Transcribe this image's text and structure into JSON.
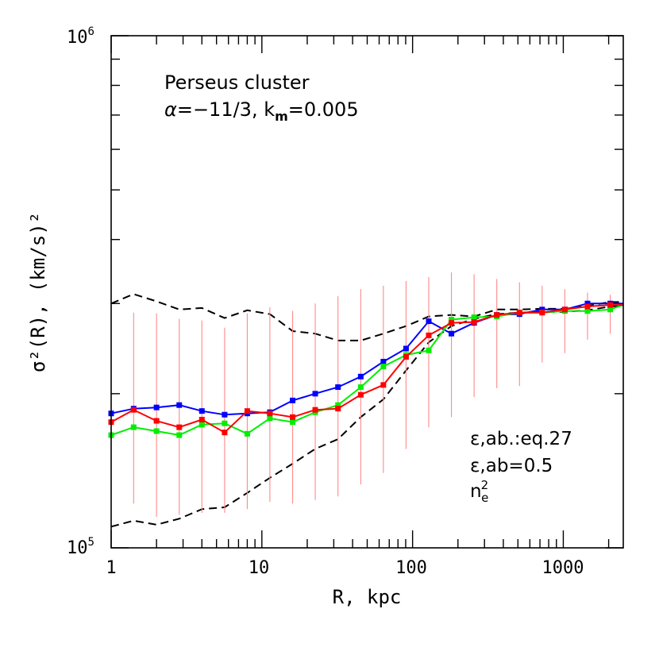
{
  "chart_data": {
    "type": "line",
    "title": "Perseus cluster",
    "subtitle": {
      "alpha_symbol": "α",
      "alpha_value": "=−11/3, k",
      "k_sub": "m",
      "k_value": "=0.005"
    },
    "xlabel": "R, kpc",
    "ylabel": "σ²(R), (km/s)²",
    "x_scale": "log",
    "y_scale": "log",
    "xlim": [
      1,
      2500
    ],
    "ylim": [
      100000,
      1000000
    ],
    "x_ticklabels": [
      "1",
      "10",
      "100",
      "1000"
    ],
    "y_ticklabels": {
      "low": {
        "base": "10",
        "exp": "5"
      },
      "high": {
        "base": "10",
        "exp": "6"
      }
    },
    "colors": {
      "red": "#ff0000",
      "blue": "#0000ff",
      "green": "#00ee00",
      "errorbar": "#ff8a8a",
      "envelope": "#000000"
    },
    "legend_position": "lower-right",
    "x": [
      1,
      1.41,
      2,
      2.83,
      4,
      5.66,
      8,
      11.3,
      16,
      22.6,
      32,
      45.3,
      64,
      90.5,
      128,
      181,
      256,
      362,
      512,
      724,
      1024,
      1448,
      2048,
      2500
    ],
    "series": [
      {
        "name": "ε,ab.:eq.27",
        "color": "red",
        "values": [
          176000,
          186000,
          177000,
          172000,
          178000,
          168000,
          185000,
          183000,
          180000,
          186000,
          187000,
          199000,
          208000,
          236000,
          260000,
          275000,
          276000,
          285000,
          288000,
          288000,
          292000,
          296000,
          298000,
          298000
        ]
      },
      {
        "name": "ε,ab=0.5",
        "color": "blue",
        "values": [
          183000,
          187000,
          188000,
          190000,
          185000,
          182000,
          183000,
          184000,
          194000,
          200000,
          206000,
          216000,
          231000,
          245000,
          277000,
          262000,
          275000,
          285000,
          286000,
          292000,
          292000,
          300000,
          300000,
          300000
        ]
      },
      {
        "name": "n_e²",
        "color": "green",
        "values": [
          166000,
          172000,
          169000,
          166000,
          174000,
          175000,
          167000,
          179000,
          176000,
          184000,
          190000,
          206000,
          226000,
          238000,
          243000,
          279000,
          282000,
          283000,
          288000,
          288000,
          290000,
          290000,
          292000,
          298000
        ]
      }
    ],
    "error_bars": [
      {
        "x": 1.41,
        "low": 122000,
        "high": 288000
      },
      {
        "x": 2,
        "low": 115000,
        "high": 287000
      },
      {
        "x": 2.83,
        "low": 116000,
        "high": 280000
      },
      {
        "x": 4,
        "low": 117000,
        "high": 278000
      },
      {
        "x": 5.66,
        "low": 117000,
        "high": 269000
      },
      {
        "x": 8,
        "low": 119000,
        "high": 287000
      },
      {
        "x": 11.3,
        "low": 123000,
        "high": 295000
      },
      {
        "x": 16,
        "low": 122000,
        "high": 290000
      },
      {
        "x": 22.6,
        "low": 124000,
        "high": 300000
      },
      {
        "x": 32,
        "low": 126000,
        "high": 310000
      },
      {
        "x": 45.3,
        "low": 133000,
        "high": 320000
      },
      {
        "x": 64,
        "low": 140000,
        "high": 325000
      },
      {
        "x": 90.5,
        "low": 156000,
        "high": 332000
      },
      {
        "x": 128,
        "low": 172000,
        "high": 338000
      },
      {
        "x": 181,
        "low": 180000,
        "high": 345000
      },
      {
        "x": 256,
        "low": 197000,
        "high": 342000
      },
      {
        "x": 362,
        "low": 205000,
        "high": 335000
      },
      {
        "x": 512,
        "low": 207000,
        "high": 330000
      },
      {
        "x": 724,
        "low": 230000,
        "high": 325000
      },
      {
        "x": 1024,
        "low": 240000,
        "high": 320000
      },
      {
        "x": 1448,
        "low": 255000,
        "high": 315000
      },
      {
        "x": 2048,
        "low": 262000,
        "high": 312000
      }
    ],
    "envelope_upper": {
      "x": [
        1,
        1.41,
        2,
        2.83,
        4,
        5.66,
        8,
        11.3,
        16,
        22.6,
        32,
        45.3,
        64,
        90.5,
        128,
        181,
        256,
        362,
        512,
        724,
        1024,
        1448,
        2048,
        2500
      ],
      "y": [
        300000,
        313000,
        303000,
        292000,
        294000,
        281000,
        291000,
        286000,
        265000,
        262000,
        254000,
        254000,
        262000,
        271000,
        283000,
        285000,
        283000,
        292000,
        292000,
        293000,
        293000,
        297000,
        302000,
        302000
      ]
    },
    "envelope_lower": {
      "x": [
        1,
        1.41,
        2,
        2.83,
        4,
        5.66,
        8,
        11.3,
        16,
        22.6,
        32,
        45.3,
        64,
        90.5,
        128,
        181,
        256,
        362,
        512,
        724,
        1024,
        1448,
        2048,
        2500
      ],
      "y": [
        110000,
        113000,
        111000,
        114000,
        119000,
        120000,
        128000,
        137000,
        146000,
        156000,
        163000,
        180000,
        195000,
        222000,
        252000,
        271000,
        280000,
        286000,
        288000,
        289000,
        289000,
        291000,
        296000,
        297000
      ]
    }
  }
}
